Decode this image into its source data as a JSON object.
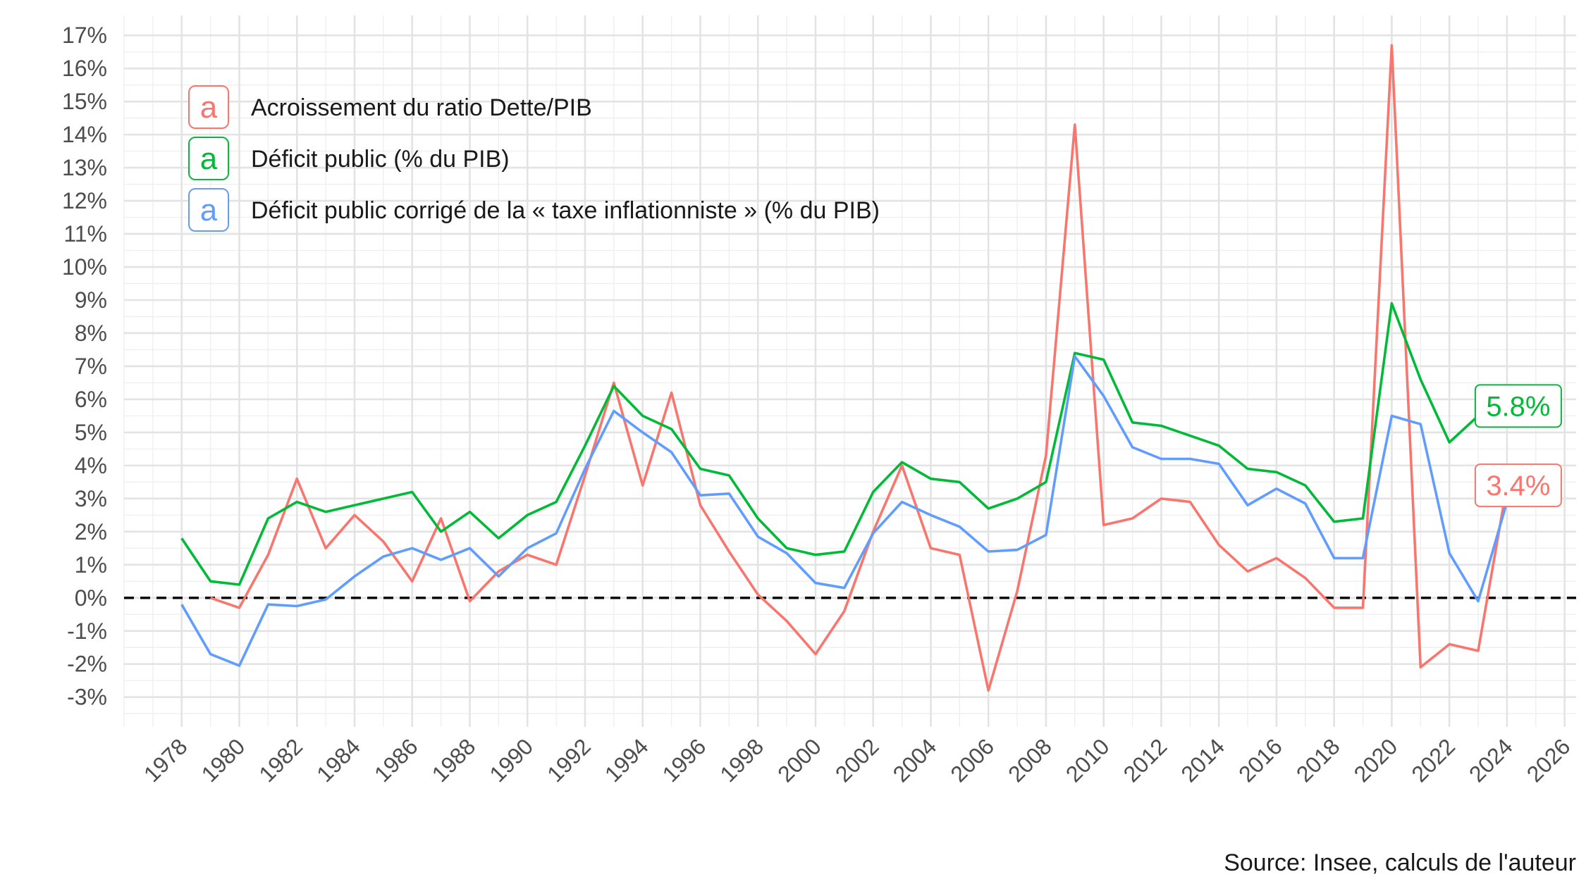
{
  "chart_data": {
    "type": "line",
    "title": "",
    "xlabel": "",
    "ylabel": "",
    "caption": "Source: Insee, calculs de l'auteur",
    "xlim": [
      1976,
      2026.4
    ],
    "ylim": [
      -3.9,
      17.6
    ],
    "x_ticks": [
      1978,
      1980,
      1982,
      1984,
      1986,
      1988,
      1990,
      1992,
      1994,
      1996,
      1998,
      2000,
      2002,
      2004,
      2006,
      2008,
      2010,
      2012,
      2014,
      2016,
      2018,
      2020,
      2022,
      2024,
      2026
    ],
    "y_ticks": [
      -3,
      -2,
      -1,
      0,
      1,
      2,
      3,
      4,
      5,
      6,
      7,
      8,
      9,
      10,
      11,
      12,
      13,
      14,
      15,
      16,
      17
    ],
    "y_tick_labels": [
      "-3%",
      "-2%",
      "-1%",
      "0%",
      "1%",
      "2%",
      "3%",
      "4%",
      "5%",
      "6%",
      "7%",
      "8%",
      "9%",
      "10%",
      "11%",
      "12%",
      "13%",
      "14%",
      "15%",
      "16%",
      "17%"
    ],
    "grid": true,
    "reference_line": {
      "y": 0,
      "style": "dashed",
      "color": "#000000"
    },
    "legend": {
      "position": "top-left",
      "key_glyph": "a",
      "entries": [
        {
          "label": "Acroissement du ratio Dette/PIB",
          "color": "#F8766D"
        },
        {
          "label": "Déficit public (% du PIB)",
          "color": "#00BA38"
        },
        {
          "label": "Déficit public corrigé de la « taxe inflationniste » (% du PIB)",
          "color": "#619CFF"
        }
      ]
    },
    "series": [
      {
        "name": "Acroissement du ratio Dette/PIB",
        "color": "#F8766D",
        "x": [
          1979,
          1980,
          1981,
          1982,
          1983,
          1984,
          1985,
          1986,
          1987,
          1988,
          1989,
          1990,
          1991,
          1992,
          1993,
          1994,
          1995,
          1996,
          1997,
          1998,
          1999,
          2000,
          2001,
          2002,
          2003,
          2004,
          2005,
          2006,
          2007,
          2008,
          2009,
          2010,
          2011,
          2012,
          2013,
          2014,
          2015,
          2016,
          2017,
          2018,
          2019,
          2020,
          2021,
          2022,
          2023,
          2024
        ],
        "values": [
          0,
          -0.3,
          1.3,
          3.6,
          1.5,
          2.5,
          1.7,
          0.5,
          2.4,
          -0.1,
          0.8,
          1.3,
          1.0,
          3.7,
          6.5,
          3.4,
          6.2,
          2.8,
          1.4,
          0.1,
          -0.7,
          -1.7,
          -0.4,
          2.0,
          4.0,
          1.5,
          1.3,
          -2.8,
          0.2,
          4.3,
          14.3,
          2.2,
          2.4,
          3.0,
          2.9,
          1.6,
          0.8,
          1.2,
          0.6,
          -0.3,
          -0.3,
          16.7,
          -2.1,
          -1.4,
          -1.6,
          3.4
        ]
      },
      {
        "name": "Déficit public (% du PIB)",
        "color": "#00BA38",
        "x": [
          1978,
          1979,
          1980,
          1981,
          1982,
          1983,
          1984,
          1985,
          1986,
          1987,
          1988,
          1989,
          1990,
          1991,
          1992,
          1993,
          1994,
          1995,
          1996,
          1997,
          1998,
          1999,
          2000,
          2001,
          2002,
          2003,
          2004,
          2005,
          2006,
          2007,
          2008,
          2009,
          2010,
          2011,
          2012,
          2013,
          2014,
          2015,
          2016,
          2017,
          2018,
          2019,
          2020,
          2021,
          2022,
          2023,
          2024
        ],
        "values": [
          1.8,
          0.5,
          0.4,
          2.4,
          2.9,
          2.6,
          2.8,
          3.0,
          3.2,
          2.0,
          2.6,
          1.8,
          2.5,
          2.9,
          4.6,
          6.4,
          5.5,
          5.1,
          3.9,
          3.7,
          2.4,
          1.5,
          1.3,
          1.4,
          3.2,
          4.1,
          3.6,
          3.5,
          2.7,
          3.0,
          3.5,
          7.4,
          7.2,
          5.3,
          5.2,
          4.9,
          4.6,
          3.9,
          3.8,
          3.4,
          2.3,
          2.4,
          8.9,
          6.6,
          4.7,
          5.5,
          5.8
        ]
      },
      {
        "name": "Déficit public corrigé de la « taxe inflationniste » (% du PIB)",
        "color": "#619CFF",
        "x": [
          1978,
          1979,
          1980,
          1981,
          1982,
          1983,
          1984,
          1985,
          1986,
          1987,
          1988,
          1989,
          1990,
          1991,
          1992,
          1993,
          1994,
          1995,
          1996,
          1997,
          1998,
          1999,
          2000,
          2001,
          2002,
          2003,
          2004,
          2005,
          2006,
          2007,
          2008,
          2009,
          2010,
          2011,
          2012,
          2013,
          2014,
          2015,
          2016,
          2017,
          2018,
          2019,
          2020,
          2021,
          2022,
          2023,
          2024
        ],
        "values": [
          -0.2,
          -1.7,
          -2.05,
          -0.2,
          -0.25,
          -0.05,
          0.65,
          1.25,
          1.5,
          1.15,
          1.5,
          0.65,
          1.5,
          1.95,
          3.9,
          5.65,
          5.0,
          4.4,
          3.1,
          3.15,
          1.85,
          1.35,
          0.45,
          0.3,
          1.95,
          2.9,
          2.5,
          2.15,
          1.4,
          1.45,
          1.9,
          7.3,
          6.1,
          4.55,
          4.2,
          4.2,
          4.05,
          2.8,
          3.3,
          2.85,
          1.2,
          1.2,
          5.5,
          5.25,
          1.35,
          -0.1,
          2.9
        ]
      }
    ],
    "end_labels": [
      {
        "text": "5.8%",
        "series": 1,
        "x": 2024,
        "y": 5.8,
        "color": "#00BA38"
      },
      {
        "text": "3.4%",
        "series": 0,
        "x": 2024,
        "y": 3.4,
        "color": "#F8766D"
      }
    ]
  }
}
